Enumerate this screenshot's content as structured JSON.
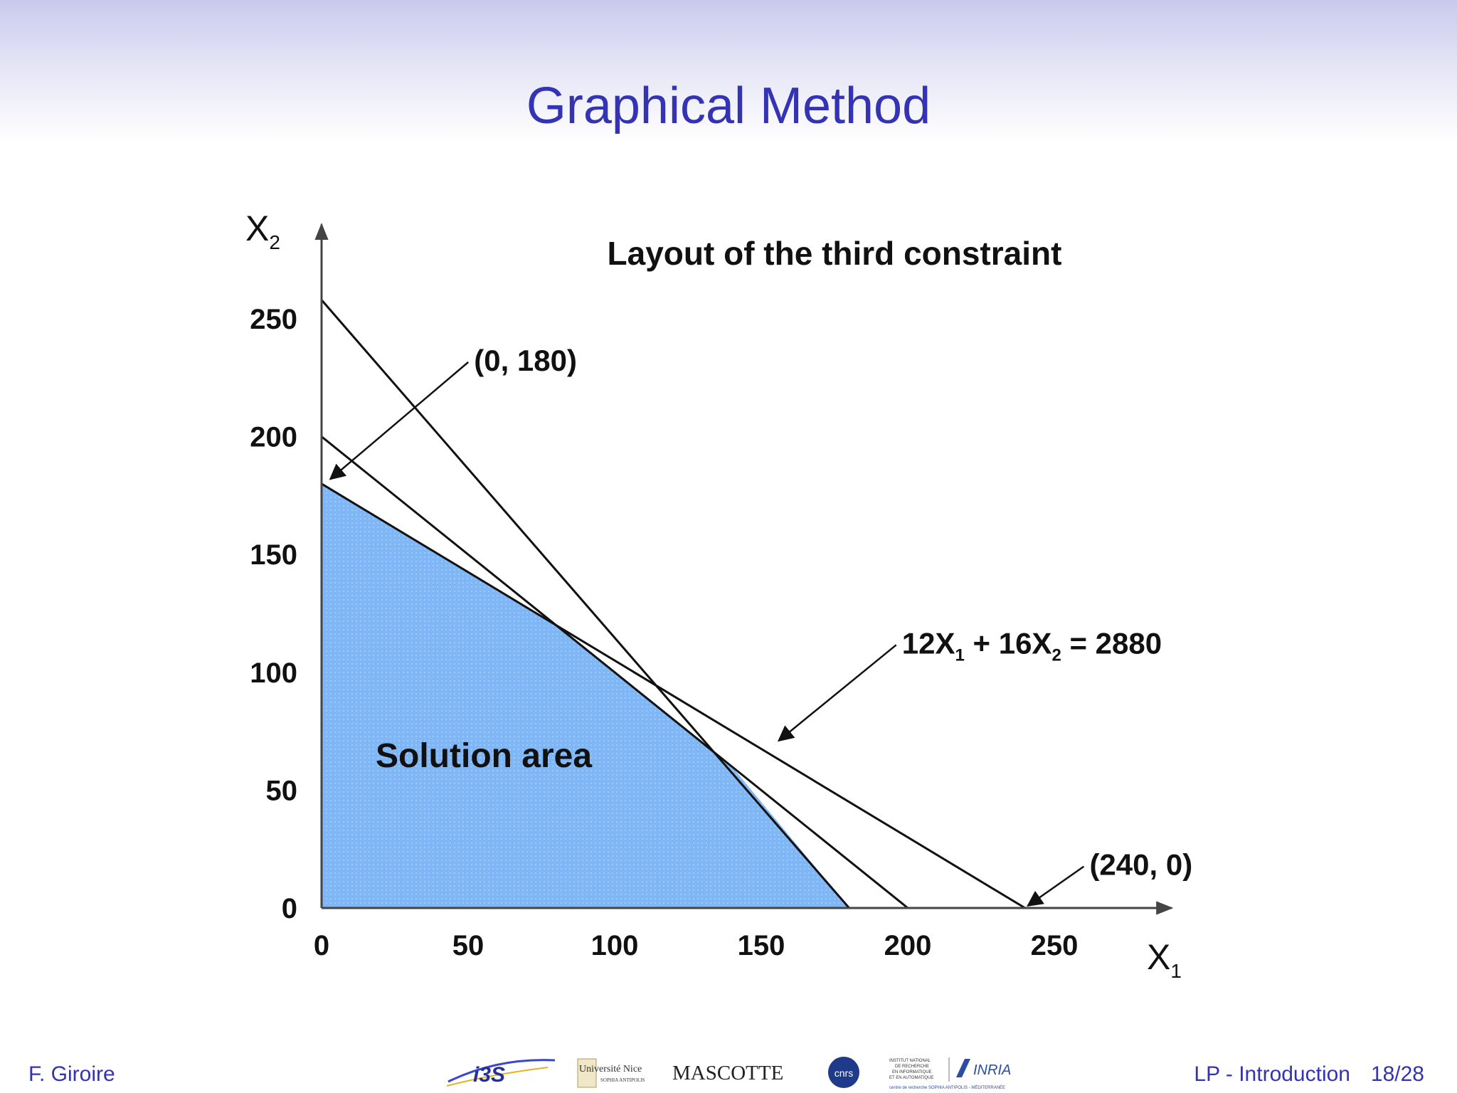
{
  "slide": {
    "title": "Graphical Method"
  },
  "footer": {
    "author": "F. Giroire",
    "section": "LP - Introduction",
    "page": "18/28",
    "logos": {
      "i3s": "i3S",
      "nice_main": "Université Nice",
      "nice_sub": "SOPHIA ANTIPOLIS",
      "mascotte": "MASCOTTE",
      "cnrs": "cnrs",
      "inria_small_1": "INSTITUT NATIONAL",
      "inria_small_2": "DE RECHERCHE",
      "inria_small_3": "EN INFORMATIQUE",
      "inria_small_4": "ET EN AUTOMATIQUE",
      "inria": "INRIA",
      "inria_bottom": "centre de recherche SOPHIA ANTIPOLIS - MÉDITERRANÉE"
    }
  },
  "colors": {
    "title": "#3333b3",
    "feasible_fill": "#7fb6f5",
    "line": "#111111"
  },
  "chart_data": {
    "type": "line",
    "title": "Layout of the third constraint",
    "xlabel": "X",
    "xlabel_sub": "1",
    "ylabel": "X",
    "ylabel_sub": "2",
    "xlim": [
      0,
      290
    ],
    "ylim": [
      0,
      290
    ],
    "x_ticks": [
      {
        "value": 0,
        "label": "0"
      },
      {
        "value": 50,
        "label": "50"
      },
      {
        "value": 100,
        "label": "100"
      },
      {
        "value": 150,
        "label": "150"
      },
      {
        "value": 200,
        "label": "200"
      },
      {
        "value": 250,
        "label": "250"
      }
    ],
    "y_ticks": [
      {
        "value": 0,
        "label": "0"
      },
      {
        "value": 50,
        "label": "50"
      },
      {
        "value": 100,
        "label": "100"
      },
      {
        "value": 150,
        "label": "150"
      },
      {
        "value": 200,
        "label": "200"
      },
      {
        "value": 250,
        "label": "250"
      }
    ],
    "grid": false,
    "lines": [
      {
        "x": [
          0,
          180
        ],
        "y": [
          258,
          0
        ]
      },
      {
        "x": [
          0,
          200
        ],
        "y": [
          200,
          0
        ]
      },
      {
        "x": [
          0,
          240
        ],
        "y": [
          180,
          0
        ]
      }
    ],
    "feasible_region": {
      "label": "Solution area",
      "x": [
        0,
        0,
        80,
        140,
        180
      ],
      "y": [
        0,
        180,
        120,
        60,
        0
      ]
    },
    "annotations": [
      {
        "text": "(0, 180)",
        "text_at": [
          52,
          228
        ],
        "point": [
          3,
          182
        ]
      },
      {
        "text_parts": [
          "12X",
          "1",
          " + 16X",
          "2",
          " = 2880"
        ],
        "text_at": [
          198,
          108
        ],
        "point": [
          156,
          71
        ]
      },
      {
        "text": "(240, 0)",
        "text_at": [
          262,
          14
        ],
        "point": [
          241,
          1
        ]
      }
    ]
  }
}
